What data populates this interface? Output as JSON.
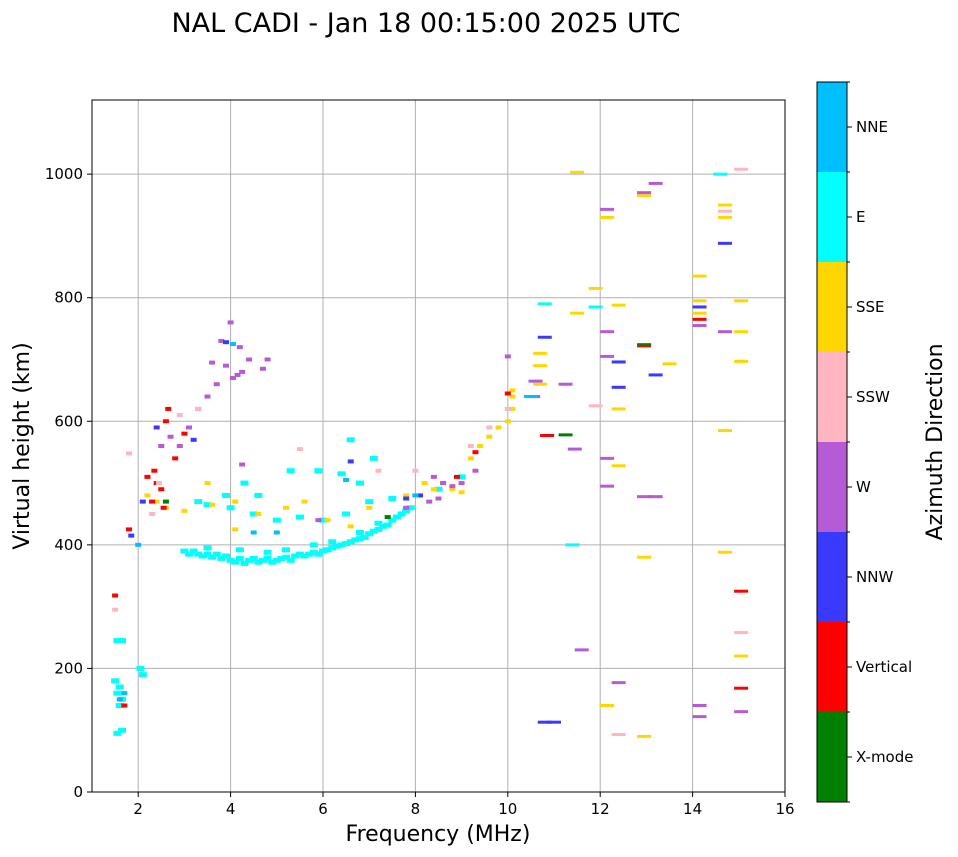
{
  "chart_data": {
    "type": "scatter",
    "title": "NAL CADI - Jan 18 00:15:00 2025 UTC",
    "xlabel": "Frequency (MHz)",
    "ylabel": "Virtual height (km)",
    "xlim": [
      1,
      16
    ],
    "ylim": [
      0,
      1120
    ],
    "xticks": [
      2,
      4,
      6,
      8,
      10,
      12,
      14,
      16
    ],
    "yticks": [
      0,
      200,
      400,
      600,
      800,
      1000
    ],
    "grid": true,
    "colorbar": {
      "label": "Azimuth Direction",
      "categories": [
        {
          "name": "X-mode",
          "color": "#008000"
        },
        {
          "name": "Vertical",
          "color": "#ff0000"
        },
        {
          "name": "NNW",
          "color": "#3a3aff"
        },
        {
          "name": "W",
          "color": "#b65bd6"
        },
        {
          "name": "SSW",
          "color": "#ffb6c1"
        },
        {
          "name": "SSE",
          "color": "#ffd700"
        },
        {
          "name": "E",
          "color": "#00ffff"
        },
        {
          "name": "NNE",
          "color": "#00bfff"
        }
      ]
    },
    "series": [
      {
        "name": "E",
        "color": "#00ffff",
        "points": [
          [
            1.55,
            245
          ],
          [
            1.65,
            245
          ],
          [
            1.5,
            180
          ],
          [
            1.6,
            170
          ],
          [
            1.55,
            160
          ],
          [
            1.65,
            150
          ],
          [
            1.6,
            140
          ],
          [
            1.55,
            95
          ],
          [
            1.65,
            100
          ],
          [
            2.1,
            190
          ],
          [
            2.05,
            200
          ],
          [
            3.0,
            390
          ],
          [
            3.1,
            385
          ],
          [
            3.2,
            390
          ],
          [
            3.3,
            385
          ],
          [
            3.4,
            382
          ],
          [
            3.5,
            385
          ],
          [
            3.6,
            380
          ],
          [
            3.7,
            385
          ],
          [
            3.8,
            378
          ],
          [
            3.9,
            382
          ],
          [
            4.0,
            375
          ],
          [
            4.1,
            372
          ],
          [
            4.2,
            378
          ],
          [
            4.3,
            370
          ],
          [
            4.4,
            375
          ],
          [
            4.5,
            378
          ],
          [
            4.6,
            372
          ],
          [
            4.7,
            375
          ],
          [
            4.8,
            378
          ],
          [
            4.9,
            372
          ],
          [
            5.0,
            375
          ],
          [
            5.1,
            378
          ],
          [
            5.2,
            380
          ],
          [
            5.3,
            375
          ],
          [
            5.4,
            382
          ],
          [
            5.5,
            385
          ],
          [
            5.6,
            382
          ],
          [
            5.7,
            385
          ],
          [
            5.8,
            388
          ],
          [
            5.9,
            385
          ],
          [
            6.0,
            390
          ],
          [
            6.1,
            392
          ],
          [
            6.2,
            395
          ],
          [
            6.3,
            398
          ],
          [
            6.4,
            400
          ],
          [
            6.5,
            402
          ],
          [
            6.6,
            405
          ],
          [
            6.7,
            408
          ],
          [
            6.8,
            410
          ],
          [
            6.9,
            412
          ],
          [
            7.0,
            418
          ],
          [
            7.1,
            422
          ],
          [
            7.2,
            425
          ],
          [
            7.3,
            430
          ],
          [
            7.4,
            432
          ],
          [
            7.5,
            440
          ],
          [
            7.6,
            445
          ],
          [
            7.7,
            450
          ],
          [
            7.8,
            455
          ],
          [
            7.9,
            460
          ],
          [
            3.5,
            395
          ],
          [
            4.2,
            392
          ],
          [
            4.8,
            388
          ],
          [
            5.2,
            392
          ],
          [
            5.8,
            400
          ],
          [
            6.2,
            405
          ],
          [
            6.8,
            420
          ],
          [
            7.2,
            435
          ],
          [
            4.0,
            460
          ],
          [
            4.5,
            450
          ],
          [
            5.0,
            440
          ],
          [
            5.5,
            445
          ],
          [
            6.0,
            440
          ],
          [
            6.5,
            450
          ],
          [
            7.0,
            470
          ],
          [
            7.5,
            475
          ],
          [
            3.5,
            465
          ],
          [
            4.3,
            500
          ],
          [
            4.6,
            480
          ],
          [
            6.6,
            570
          ],
          [
            6.4,
            515
          ],
          [
            6.8,
            500
          ],
          [
            5.3,
            520
          ],
          [
            5.9,
            520
          ],
          [
            3.9,
            480
          ],
          [
            3.3,
            470
          ],
          [
            7.1,
            540
          ],
          [
            8.5,
            490
          ],
          [
            9.0,
            510
          ],
          [
            10.8,
            790
          ],
          [
            11.9,
            785
          ],
          [
            14.6,
            1000
          ],
          [
            11.4,
            400
          ]
        ]
      },
      {
        "name": "SSE",
        "color": "#ffd700",
        "points": [
          [
            2.2,
            480
          ],
          [
            2.4,
            470
          ],
          [
            2.6,
            460
          ],
          [
            3.0,
            455
          ],
          [
            3.6,
            465
          ],
          [
            4.1,
            470
          ],
          [
            4.6,
            450
          ],
          [
            5.2,
            460
          ],
          [
            5.6,
            470
          ],
          [
            6.1,
            440
          ],
          [
            6.6,
            430
          ],
          [
            7.0,
            460
          ],
          [
            7.8,
            480
          ],
          [
            8.2,
            500
          ],
          [
            8.4,
            490
          ],
          [
            8.6,
            500
          ],
          [
            8.8,
            490
          ],
          [
            9.0,
            485
          ],
          [
            9.2,
            540
          ],
          [
            9.4,
            560
          ],
          [
            9.6,
            575
          ],
          [
            9.8,
            590
          ],
          [
            10.0,
            600
          ],
          [
            10.1,
            620
          ],
          [
            10.1,
            640
          ],
          [
            10.1,
            650
          ],
          [
            10.7,
            660
          ],
          [
            10.7,
            710
          ],
          [
            10.7,
            690
          ],
          [
            11.5,
            775
          ],
          [
            11.5,
            1003
          ],
          [
            11.9,
            815
          ],
          [
            12.15,
            930
          ],
          [
            12.15,
            140
          ],
          [
            12.4,
            788
          ],
          [
            12.4,
            620
          ],
          [
            12.4,
            528
          ],
          [
            12.95,
            380
          ],
          [
            12.95,
            965
          ],
          [
            12.95,
            90
          ],
          [
            13.5,
            693
          ],
          [
            14.15,
            835
          ],
          [
            14.15,
            795
          ],
          [
            14.15,
            775
          ],
          [
            14.7,
            930
          ],
          [
            14.7,
            950
          ],
          [
            14.7,
            585
          ],
          [
            14.7,
            388
          ],
          [
            15.05,
            795
          ],
          [
            15.05,
            745
          ],
          [
            15.05,
            697
          ],
          [
            15.05,
            220
          ],
          [
            3.5,
            500
          ],
          [
            4.1,
            425
          ]
        ]
      },
      {
        "name": "W",
        "color": "#b65bd6",
        "points": [
          [
            2.5,
            560
          ],
          [
            2.7,
            575
          ],
          [
            2.9,
            560
          ],
          [
            3.1,
            590
          ],
          [
            3.3,
            620
          ],
          [
            3.5,
            640
          ],
          [
            3.7,
            660
          ],
          [
            3.9,
            690
          ],
          [
            4.05,
            670
          ],
          [
            4.15,
            675
          ],
          [
            4.25,
            680
          ],
          [
            4.0,
            760
          ],
          [
            4.2,
            720
          ],
          [
            4.4,
            700
          ],
          [
            3.8,
            730
          ],
          [
            3.6,
            695
          ],
          [
            4.8,
            700
          ],
          [
            4.7,
            685
          ],
          [
            4.25,
            530
          ],
          [
            5.9,
            440
          ],
          [
            7.8,
            460
          ],
          [
            8.4,
            510
          ],
          [
            8.6,
            500
          ],
          [
            8.8,
            495
          ],
          [
            9.0,
            500
          ],
          [
            8.5,
            475
          ],
          [
            8.3,
            470
          ],
          [
            9.3,
            520
          ],
          [
            10.0,
            705
          ],
          [
            10.55,
            640
          ],
          [
            10.6,
            665
          ],
          [
            11.25,
            660
          ],
          [
            11.45,
            555
          ],
          [
            12.15,
            943
          ],
          [
            12.15,
            745
          ],
          [
            12.15,
            705
          ],
          [
            12.15,
            540
          ],
          [
            12.15,
            495
          ],
          [
            12.4,
            177
          ],
          [
            12.95,
            970
          ],
          [
            12.95,
            478
          ],
          [
            13.2,
            985
          ],
          [
            13.2,
            478
          ],
          [
            14.15,
            755
          ],
          [
            14.15,
            122
          ],
          [
            14.15,
            140
          ],
          [
            14.7,
            745
          ],
          [
            15.05,
            130
          ],
          [
            11.6,
            230
          ]
        ]
      },
      {
        "name": "Vertical",
        "color": "#ff0000",
        "points": [
          [
            1.5,
            318
          ],
          [
            1.8,
            425
          ],
          [
            2.2,
            510
          ],
          [
            2.35,
            520
          ],
          [
            2.4,
            500
          ],
          [
            2.5,
            490
          ],
          [
            2.6,
            600
          ],
          [
            2.65,
            620
          ],
          [
            2.8,
            540
          ],
          [
            3.0,
            580
          ],
          [
            2.3,
            470
          ],
          [
            2.55,
            460
          ],
          [
            1.7,
            140
          ],
          [
            8.9,
            510
          ],
          [
            9.3,
            550
          ],
          [
            10.0,
            645
          ],
          [
            10.85,
            577
          ],
          [
            12.95,
            722
          ],
          [
            14.15,
            765
          ],
          [
            15.05,
            325
          ],
          [
            15.05,
            168
          ]
        ]
      },
      {
        "name": "SSW",
        "color": "#ffb6c1",
        "points": [
          [
            1.5,
            295
          ],
          [
            1.8,
            548
          ],
          [
            2.3,
            450
          ],
          [
            2.45,
            500
          ],
          [
            2.9,
            610
          ],
          [
            3.3,
            620
          ],
          [
            5.5,
            555
          ],
          [
            7.2,
            520
          ],
          [
            8.0,
            520
          ],
          [
            9.2,
            560
          ],
          [
            9.6,
            590
          ],
          [
            10.0,
            620
          ],
          [
            11.9,
            625
          ],
          [
            12.4,
            93
          ],
          [
            14.7,
            940
          ],
          [
            15.05,
            1008
          ],
          [
            15.05,
            258
          ]
        ]
      },
      {
        "name": "NNW",
        "color": "#3a3aff",
        "points": [
          [
            1.85,
            415
          ],
          [
            2.1,
            470
          ],
          [
            2.4,
            590
          ],
          [
            3.2,
            570
          ],
          [
            3.9,
            728
          ],
          [
            6.6,
            535
          ],
          [
            7.8,
            475
          ],
          [
            8.1,
            480
          ],
          [
            10.8,
            736
          ],
          [
            10.8,
            113
          ],
          [
            11.0,
            113
          ],
          [
            12.4,
            655
          ],
          [
            12.4,
            696
          ],
          [
            13.2,
            675
          ],
          [
            14.7,
            888
          ],
          [
            14.15,
            785
          ]
        ]
      },
      {
        "name": "NNE",
        "color": "#00bfff",
        "points": [
          [
            1.6,
            150
          ],
          [
            1.7,
            160
          ],
          [
            4.05,
            725
          ],
          [
            2.0,
            400
          ],
          [
            4.5,
            420
          ],
          [
            5.0,
            420
          ],
          [
            6.5,
            505
          ],
          [
            8.0,
            480
          ],
          [
            10.5,
            640
          ]
        ]
      },
      {
        "name": "X-mode",
        "color": "#008000",
        "points": [
          [
            11.25,
            578
          ],
          [
            12.95,
            724
          ],
          [
            2.6,
            470
          ],
          [
            7.4,
            445
          ]
        ]
      }
    ]
  }
}
